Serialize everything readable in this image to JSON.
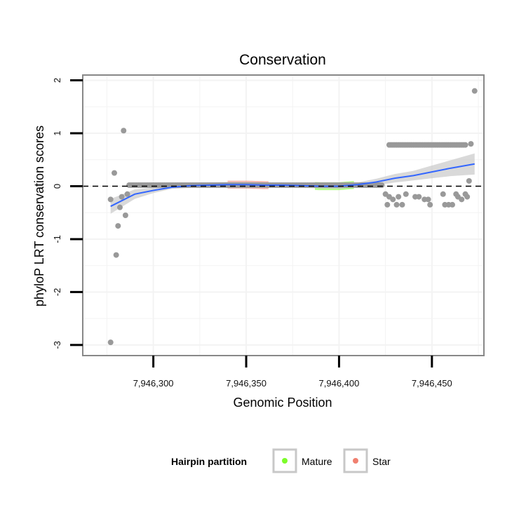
{
  "chart_data": {
    "type": "scatter",
    "title": "Conservation",
    "xlabel": "Genomic Position",
    "ylabel": "phyloP LRT conservation scores",
    "xlim": [
      7946262,
      7946478
    ],
    "ylim": [
      -3.2,
      2.1
    ],
    "x_ticks": [
      7946300,
      7946350,
      7946400,
      7946450
    ],
    "x_tick_labels": [
      "7,946,300",
      "7,946,350",
      "7,946,400",
      "7,946,450"
    ],
    "y_ticks": [
      -3,
      -2,
      -1,
      0,
      1,
      2
    ],
    "y_tick_labels": [
      "-3",
      "-2",
      "-1",
      "0",
      "1",
      "2"
    ],
    "grid": true,
    "reference_line": {
      "y": 0,
      "style": "dashed",
      "color": "#000000"
    },
    "legend": {
      "title": "Hairpin partition",
      "placement": "bottom",
      "entries": [
        {
          "name": "Mature",
          "color": "#7cfc2a"
        },
        {
          "name": "Star",
          "color": "#f08070"
        }
      ]
    },
    "colors": {
      "points": "#999999",
      "smooth_line": "#3366ff",
      "confidence_band": "#cccccc",
      "mature": "#7cfc2a",
      "star": "#f08070",
      "panel_border": "#888888"
    },
    "series": [
      {
        "type": "scatter",
        "points": [
          [
            7946277,
            -0.25
          ],
          [
            7946277,
            -2.95
          ],
          [
            7946279,
            0.25
          ],
          [
            7946280,
            -1.3
          ],
          [
            7946281,
            -0.75
          ],
          [
            7946282,
            -0.4
          ],
          [
            7946283,
            -0.2
          ],
          [
            7946284,
            1.05
          ],
          [
            7946285,
            -0.55
          ],
          [
            7946286,
            -0.15
          ],
          [
            7946425,
            -0.15
          ],
          [
            7946426,
            -0.35
          ],
          [
            7946427,
            -0.2
          ],
          [
            7946429,
            -0.25
          ],
          [
            7946431,
            -0.35
          ],
          [
            7946432,
            -0.2
          ],
          [
            7946434,
            -0.35
          ],
          [
            7946436,
            -0.15
          ],
          [
            7946441,
            -0.2
          ],
          [
            7946443,
            -0.2
          ],
          [
            7946446,
            -0.25
          ],
          [
            7946448,
            -0.25
          ],
          [
            7946449,
            -0.35
          ],
          [
            7946456,
            -0.15
          ],
          [
            7946457,
            -0.35
          ],
          [
            7946459,
            -0.35
          ],
          [
            7946461,
            -0.35
          ],
          [
            7946463,
            -0.15
          ],
          [
            7946464,
            -0.2
          ],
          [
            7946466,
            -0.25
          ],
          [
            7946468,
            -0.15
          ],
          [
            7946469,
            -0.2
          ],
          [
            7946470,
            0.1
          ],
          [
            7946471,
            0.8
          ],
          [
            7946473,
            1.8
          ]
        ],
        "row_at_zero": {
          "from": 7946287,
          "to": 7946423,
          "y": 0.02
        },
        "row_at_high": {
          "from": 7946427,
          "to": 7946468,
          "y": 0.78
        }
      },
      {
        "type": "line",
        "name": "smooth",
        "x": [
          7946277,
          7946290,
          7946300,
          7946310,
          7946320,
          7946330,
          7946340,
          7946350,
          7946360,
          7946370,
          7946380,
          7946390,
          7946400,
          7946410,
          7946420,
          7946430,
          7946440,
          7946450,
          7946460,
          7946473
        ],
        "y": [
          -0.38,
          -0.15,
          -0.08,
          -0.02,
          0.01,
          0.02,
          0.03,
          0.03,
          0.02,
          0.02,
          0.01,
          0.0,
          0.0,
          0.03,
          0.08,
          0.15,
          0.2,
          0.27,
          0.34,
          0.42
        ],
        "band_lower": [
          -0.52,
          -0.24,
          -0.13,
          -0.05,
          -0.03,
          -0.03,
          -0.02,
          -0.02,
          -0.02,
          -0.02,
          -0.03,
          -0.04,
          -0.05,
          -0.01,
          0.02,
          0.07,
          0.11,
          0.15,
          0.19,
          0.22
        ],
        "band_upper": [
          -0.24,
          -0.06,
          -0.03,
          0.01,
          0.05,
          0.07,
          0.08,
          0.08,
          0.07,
          0.06,
          0.05,
          0.04,
          0.05,
          0.07,
          0.14,
          0.23,
          0.29,
          0.39,
          0.49,
          0.62
        ]
      },
      {
        "type": "band",
        "name": "Star",
        "x_range": [
          7946340,
          7946362
        ]
      },
      {
        "type": "band",
        "name": "Mature",
        "x_range": [
          7946387,
          7946408
        ]
      }
    ]
  }
}
